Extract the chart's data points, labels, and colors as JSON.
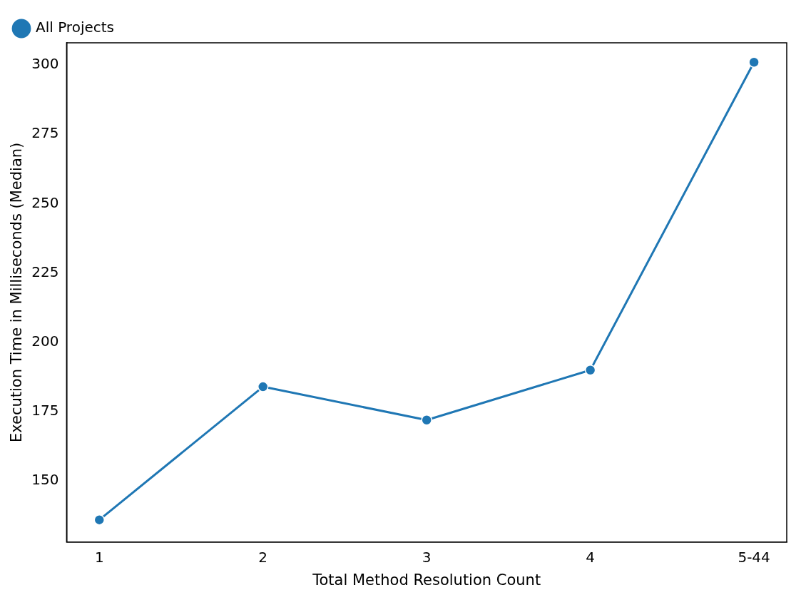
{
  "chart_data": {
    "type": "line",
    "xlabel": "Total Method Resolution Count",
    "ylabel": "Execution Time in Milliseconds (Median)",
    "categories": [
      "1",
      "2",
      "3",
      "4",
      "5-44"
    ],
    "series": [
      {
        "name": "All Projects",
        "color": "#1f77b4",
        "values": [
          136,
          184,
          172,
          190,
          301
        ]
      }
    ],
    "ylim": [
      128,
      308
    ],
    "yticks": [
      150,
      175,
      200,
      225,
      250,
      275,
      300
    ],
    "grid": false,
    "legend": "top left",
    "marker": "circle",
    "line_style": "solid"
  }
}
